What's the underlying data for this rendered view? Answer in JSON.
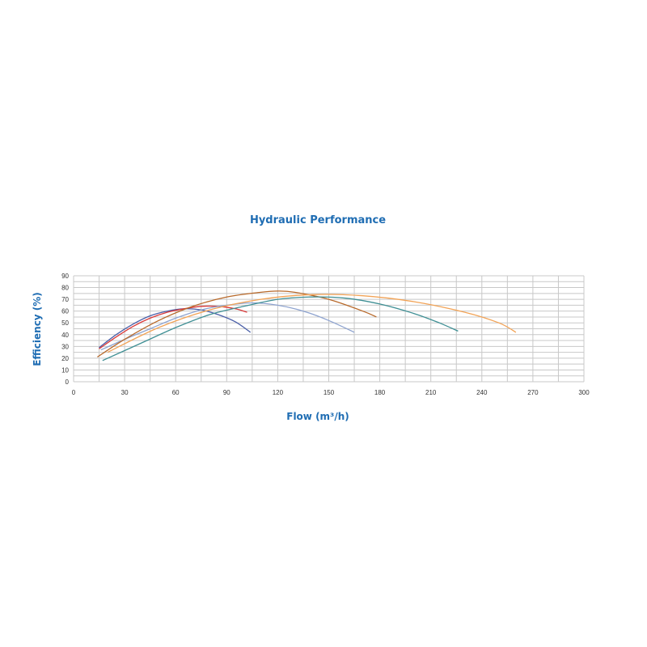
{
  "chart_data": {
    "type": "line",
    "title": "Hydraulic Performance",
    "xlabel": "Flow (m³/h)",
    "ylabel": "Efficiency (%)",
    "xlim": [
      0,
      300
    ],
    "ylim": [
      0,
      90
    ],
    "x_ticks": [
      0,
      30,
      60,
      90,
      120,
      150,
      180,
      210,
      240,
      270,
      300
    ],
    "y_ticks": [
      0,
      10,
      20,
      30,
      40,
      50,
      60,
      70,
      80,
      90
    ],
    "grid": true,
    "legend": "none",
    "colors": {
      "title": "#1f6db3",
      "axis_title": "#1f6db3",
      "grid": "#c8c8c8"
    },
    "series": [
      {
        "color": "#4a5fa8",
        "x": [
          15,
          25,
          35,
          45,
          55,
          65,
          75,
          85,
          95,
          104
        ],
        "y": [
          29,
          40,
          49,
          56,
          60,
          62,
          61,
          57,
          51,
          42
        ]
      },
      {
        "color": "#d93a3a",
        "x": [
          15,
          25,
          35,
          45,
          55,
          65,
          75,
          85,
          95,
          102
        ],
        "y": [
          28,
          38,
          47,
          54,
          59,
          62,
          64,
          64,
          62,
          59
        ]
      },
      {
        "color": "#8ea3cf",
        "x": [
          16,
          30,
          45,
          60,
          75,
          90,
          105,
          120,
          135,
          150,
          165
        ],
        "y": [
          27,
          36,
          45,
          54,
          61,
          65,
          67,
          65,
          60,
          52,
          42
        ]
      },
      {
        "color": "#b8692a",
        "x": [
          14,
          30,
          50,
          70,
          90,
          110,
          120,
          130,
          150,
          170,
          178
        ],
        "y": [
          21,
          36,
          52,
          64,
          72,
          76,
          77,
          76,
          70,
          60,
          55
        ]
      },
      {
        "color": "#3f8f94",
        "x": [
          17,
          40,
          60,
          80,
          100,
          120,
          140,
          160,
          180,
          200,
          215,
          226
        ],
        "y": [
          18,
          33,
          46,
          57,
          64,
          70,
          72,
          71,
          66,
          58,
          50,
          43
        ]
      },
      {
        "color": "#f2a356",
        "x": [
          20,
          50,
          80,
          110,
          140,
          170,
          200,
          230,
          250,
          260
        ],
        "y": [
          25,
          46,
          61,
          70,
          74,
          73,
          68,
          59,
          50,
          42
        ]
      }
    ]
  }
}
